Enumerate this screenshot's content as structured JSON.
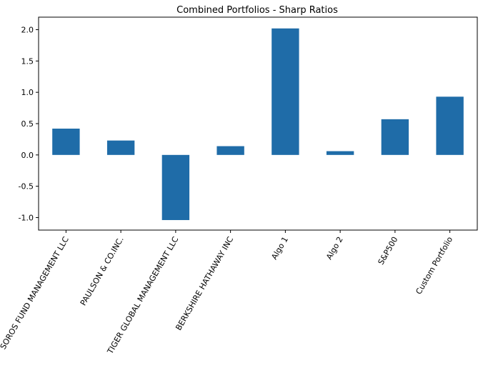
{
  "chart_data": {
    "type": "bar",
    "title": "Combined Portfolios - Sharp Ratios",
    "xlabel": "",
    "ylabel": "",
    "categories": [
      "SOROS FUND MANAGEMENT LLC",
      "PAULSON & CO.INC.",
      "TIGER GLOBAL MANAGEMENT LLC",
      "BERKSHIRE HATHAWAY INC",
      "Algo 1",
      "Algo 2",
      "S&P500",
      "Custom Portfolio"
    ],
    "values": [
      0.42,
      0.23,
      -1.04,
      0.14,
      2.02,
      0.06,
      0.57,
      0.93
    ],
    "ylim": [
      -1.2,
      2.2
    ],
    "yticks": [
      "-1.0",
      "-0.5",
      "0.0",
      "0.5",
      "1.0",
      "1.5",
      "2.0"
    ],
    "grid": false,
    "legend": "none",
    "bar_color": "#1f6ca8",
    "xtick_rotation": "60"
  }
}
